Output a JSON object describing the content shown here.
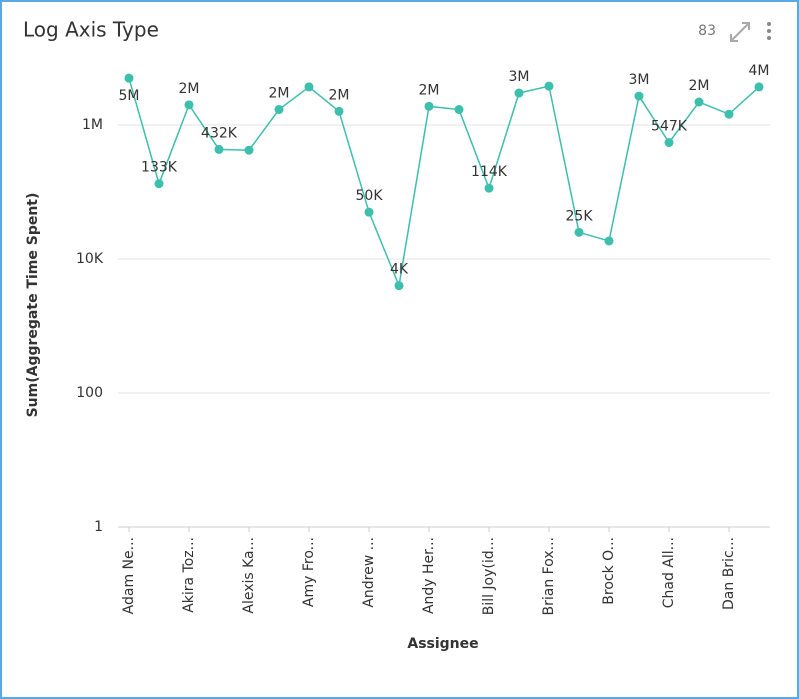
{
  "header": {
    "title": "Log Axis Type",
    "count": "83"
  },
  "chart_data": {
    "type": "line",
    "x_label": "Assignee",
    "y_label": "Sum(Aggregate Time Spent)",
    "categories": [
      "Adam Ne...",
      null,
      "Akira Toz...",
      null,
      "Alexis Ka...",
      null,
      "Amy Fro...",
      null,
      "Andrew ...",
      null,
      "Andy Her...",
      null,
      "Bill Joy(id...",
      null,
      "Brian Fox...",
      null,
      "Brock O...",
      null,
      "Chad All...",
      null,
      "Dan Bric...",
      null
    ],
    "series": [
      {
        "name": "Sum(Aggregate Time Spent)",
        "color": "#3dbfad",
        "values": [
          5000000,
          133000,
          2000000,
          432000,
          420000,
          1700000,
          3700000,
          1600000,
          50000,
          4000,
          1900000,
          1700000,
          114000,
          3000000,
          3800000,
          25000,
          18600,
          2700000,
          547000,
          2200000,
          1450000,
          3700000
        ],
        "value_labels": [
          "5M",
          "133K",
          "2M",
          "432K",
          null,
          "2M",
          null,
          "2M",
          "50K",
          "4K",
          "2M",
          null,
          "114K",
          "3M",
          null,
          "25K",
          null,
          "3M",
          "547K",
          "2M",
          null,
          "4M"
        ]
      }
    ],
    "log_y": true,
    "ylim": [
      1,
      10000000
    ],
    "yticks": [
      1,
      100,
      {
        "value": 10000,
        "label": "10K"
      },
      {
        "value": 1000000,
        "label": "1M"
      }
    ],
    "grid": true
  }
}
